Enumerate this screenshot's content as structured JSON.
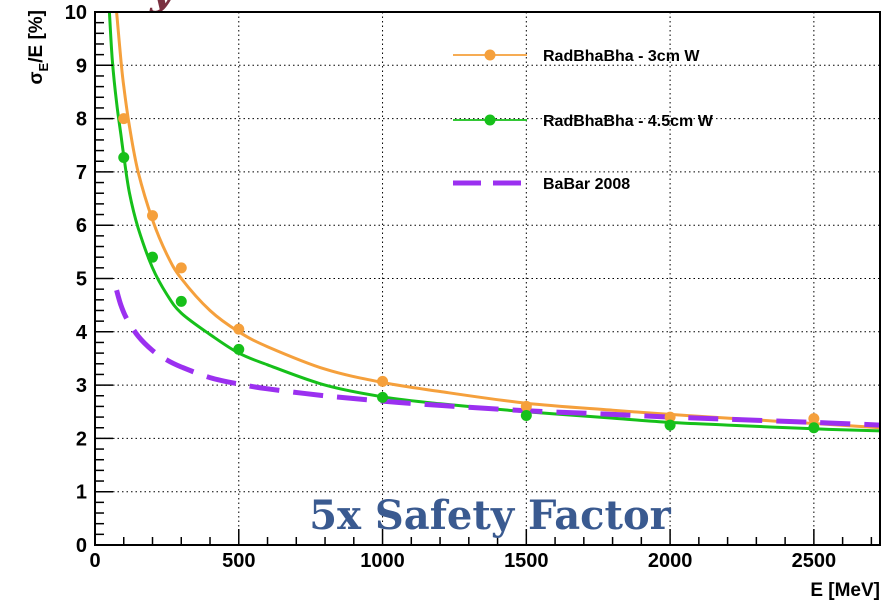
{
  "colors": {
    "series_3cm": "#F5A03C",
    "series_45cm": "#16C01A",
    "series_babar": "#9B30F0",
    "annotation": "#3A5A90",
    "top_text": "#7A3040",
    "grid": "#000000"
  },
  "top_fragment": "y",
  "annotation": "5x Safety Factor",
  "chart_data": {
    "type": "line",
    "title": "",
    "xlabel": "E [MeV]",
    "ylabel": "σ_E/E [%]",
    "xlim": [
      0,
      2730
    ],
    "ylim": [
      0,
      10
    ],
    "grid": true,
    "legend_position": "top-right",
    "xticks": [
      0,
      500,
      1000,
      1500,
      2000,
      2500
    ],
    "yticks": [
      0,
      1,
      2,
      3,
      4,
      5,
      6,
      7,
      8,
      9,
      10
    ],
    "xtick_labels": [
      "0",
      "500",
      "1000",
      "1500",
      "2000",
      "2500"
    ],
    "ytick_labels": [
      "0",
      "1",
      "2",
      "3",
      "4",
      "5",
      "6",
      "7",
      "8",
      "9",
      "10"
    ],
    "series": [
      {
        "name": "RadBhaBha - 3cm W",
        "color": "#F5A03C",
        "style": "solid-with-markers",
        "points": {
          "x": [
            100,
            200,
            300,
            500,
            1000,
            1500,
            2000,
            2500
          ],
          "y": [
            8.0,
            6.18,
            5.2,
            4.05,
            3.07,
            2.6,
            2.4,
            2.37
          ]
        },
        "fit": {
          "x": [
            75,
            90,
            100,
            120,
            150,
            200,
            250,
            300,
            400,
            500,
            600,
            800,
            1000,
            1200,
            1500,
            1800,
            2000,
            2200,
            2500,
            2730
          ],
          "y": [
            10.0,
            9.1,
            8.6,
            7.85,
            7.0,
            6.1,
            5.45,
            5.0,
            4.4,
            4.0,
            3.72,
            3.3,
            3.05,
            2.88,
            2.66,
            2.53,
            2.45,
            2.38,
            2.28,
            2.2
          ]
        }
      },
      {
        "name": "RadBhaBha - 4.5cm W",
        "color": "#16C01A",
        "style": "solid-with-markers",
        "points": {
          "x": [
            100,
            200,
            300,
            500,
            1000,
            1500,
            2000,
            2500
          ],
          "y": [
            7.27,
            5.4,
            4.57,
            3.67,
            2.77,
            2.43,
            2.25,
            2.2
          ]
        },
        "fit": {
          "x": [
            50,
            60,
            75,
            90,
            100,
            120,
            150,
            200,
            250,
            300,
            400,
            500,
            600,
            800,
            1000,
            1200,
            1500,
            1800,
            2000,
            2200,
            2500,
            2730
          ],
          "y": [
            10.0,
            9.1,
            8.3,
            7.7,
            7.3,
            6.6,
            5.95,
            5.2,
            4.7,
            4.35,
            3.95,
            3.6,
            3.38,
            3.0,
            2.78,
            2.65,
            2.5,
            2.38,
            2.3,
            2.25,
            2.18,
            2.14
          ]
        }
      },
      {
        "name": "BaBar 2008",
        "color": "#9B30F0",
        "style": "dashed",
        "fit": {
          "x": [
            75,
            90,
            110,
            150,
            200,
            250,
            300,
            400,
            500,
            600,
            800,
            1000,
            1200,
            1500,
            1800,
            2000,
            2200,
            2500,
            2730
          ],
          "y": [
            4.78,
            4.5,
            4.25,
            3.92,
            3.65,
            3.47,
            3.34,
            3.14,
            3.02,
            2.93,
            2.8,
            2.7,
            2.62,
            2.52,
            2.45,
            2.4,
            2.36,
            2.3,
            2.25
          ]
        }
      }
    ]
  }
}
